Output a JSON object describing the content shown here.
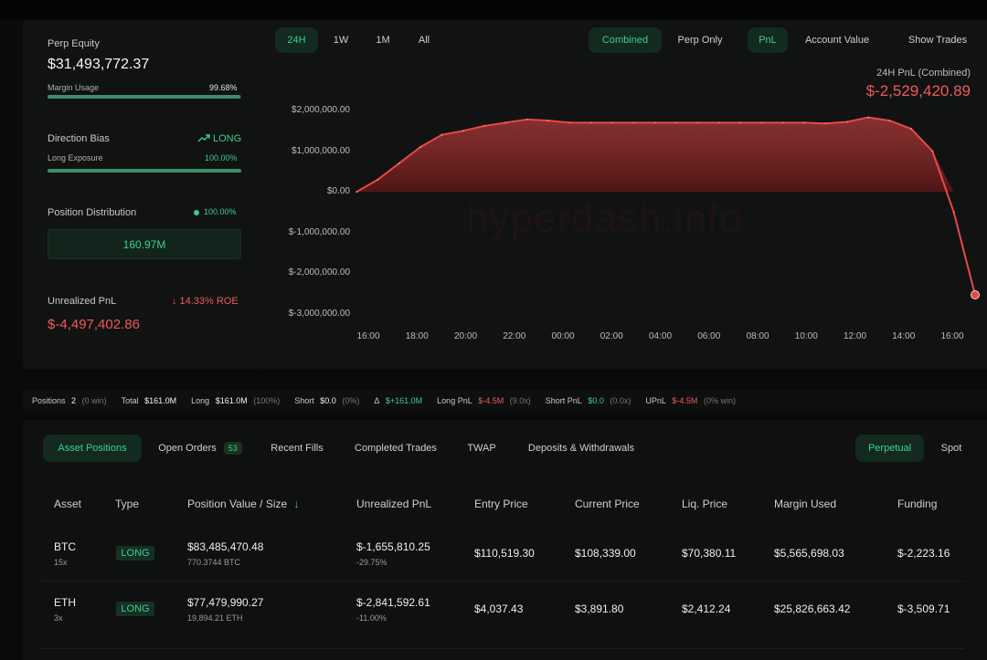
{
  "summary": {
    "perp_equity_label": "Perp Equity",
    "perp_equity_value": "$31,493,772.37",
    "margin_usage_label": "Margin Usage",
    "margin_usage_value": "99.68%",
    "margin_usage_fraction": 0.9968,
    "direction_bias_label": "Direction Bias",
    "direction_bias_value": "LONG",
    "long_exposure_label": "Long Exposure",
    "long_exposure_value": "100.00%",
    "long_exposure_fraction": 1.0,
    "position_distribution_label": "Position Distribution",
    "position_distribution_value": "100.00%",
    "position_distribution_amount": "160.97M",
    "unrealized_pnl_label": "Unrealized PnL",
    "roe_value": "14.33% ROE",
    "unrealized_pnl_value": "$-4,497,402.86"
  },
  "chart_controls": {
    "timeframes": [
      "24H",
      "1W",
      "1M",
      "All"
    ],
    "active_timeframe": "24H",
    "modes": [
      "Combined",
      "Perp Only"
    ],
    "active_mode": "Combined",
    "metrics": [
      "PnL",
      "Account Value"
    ],
    "active_metric": "PnL",
    "show_trades": "Show Trades"
  },
  "chart_header": {
    "title": "24H PnL (Combined)",
    "value": "$-2,529,420.89"
  },
  "watermark": "hyperdash.info",
  "chart_data": {
    "type": "area",
    "x": [
      "16:00",
      "16:30",
      "17:00",
      "17:30",
      "18:00",
      "19:00",
      "20:00",
      "21:00",
      "22:00",
      "23:00",
      "00:00",
      "01:00",
      "02:00",
      "03:00",
      "04:00",
      "05:00",
      "06:00",
      "07:00",
      "08:00",
      "09:00",
      "10:00",
      "11:00",
      "12:00",
      "13:00",
      "14:00",
      "15:00",
      "15:30",
      "16:00",
      "16:10",
      "16:20"
    ],
    "values": [
      0,
      300000,
      700000,
      1100000,
      1400000,
      1500000,
      1620000,
      1700000,
      1780000,
      1750000,
      1700000,
      1700000,
      1700000,
      1700000,
      1700000,
      1700000,
      1700000,
      1700000,
      1700000,
      1700000,
      1700000,
      1700000,
      1680000,
      1720000,
      1830000,
      1750000,
      1550000,
      1000000,
      -500000,
      -2529420.89
    ],
    "x_tick_labels": [
      "16:00",
      "18:00",
      "20:00",
      "22:00",
      "00:00",
      "02:00",
      "04:00",
      "06:00",
      "08:00",
      "10:00",
      "12:00",
      "14:00",
      "16:00"
    ],
    "y_tick_labels": [
      "$2,000,000.00",
      "$1,000,000.00",
      "$0.00",
      "$-1,000,000.00",
      "$-2,000,000.00",
      "$-3,000,000.00"
    ],
    "ylim": [
      -3000000,
      2000000
    ],
    "grid": false,
    "series_color": "#e74848",
    "fill_color": "#6b1717"
  },
  "stats_bar": {
    "positions_label": "Positions",
    "positions_value": "2",
    "positions_win": "(0 win)",
    "total_label": "Total",
    "total_value": "$161.0M",
    "long_label": "Long",
    "long_value": "$161.0M",
    "long_pct": "(100%)",
    "short_label": "Short",
    "short_value": "$0.0",
    "short_pct": "(0%)",
    "delta_label": "Δ",
    "delta_value": "$+161.0M",
    "long_pnl_label": "Long PnL",
    "long_pnl_value": "$-4.5M",
    "long_pnl_x": "(9.0x)",
    "short_pnl_label": "Short PnL",
    "short_pnl_value": "$0.0",
    "short_pnl_x": "(0.0x)",
    "upnl_label": "UPnL",
    "upnl_value": "$-4.5M",
    "upnl_win": "(0% win)"
  },
  "tabs": {
    "items": [
      "Asset Positions",
      "Open Orders",
      "Recent Fills",
      "Completed Trades",
      "TWAP",
      "Deposits & Withdrawals"
    ],
    "open_orders_count": "53",
    "active": "Asset Positions",
    "market_toggle": [
      "Perpetual",
      "Spot"
    ],
    "active_market": "Perpetual"
  },
  "table": {
    "headers": [
      "Asset",
      "Type",
      "Position Value / Size",
      "Unrealized PnL",
      "Entry Price",
      "Current Price",
      "Liq. Price",
      "Margin Used",
      "Funding"
    ],
    "rows": [
      {
        "asset": "BTC",
        "leverage": "15x",
        "type": "LONG",
        "position_value": "$83,485,470.48",
        "size": "770.3744 BTC",
        "upnl": "$-1,655,810.25",
        "upnl_pct": "-29.75%",
        "entry": "$110,519.30",
        "current": "$108,339.00",
        "liq": "$70,380.11",
        "margin": "$5,565,698.03",
        "funding": "$-2,223.16"
      },
      {
        "asset": "ETH",
        "leverage": "3x",
        "type": "LONG",
        "position_value": "$77,479,990.27",
        "size": "19,894.21 ETH",
        "upnl": "$-2,841,592.61",
        "upnl_pct": "-11.00%",
        "entry": "$4,037.43",
        "current": "$3,891.80",
        "liq": "$2,412.24",
        "margin": "$25,826,663.42",
        "funding": "$-3,509.71"
      }
    ]
  }
}
